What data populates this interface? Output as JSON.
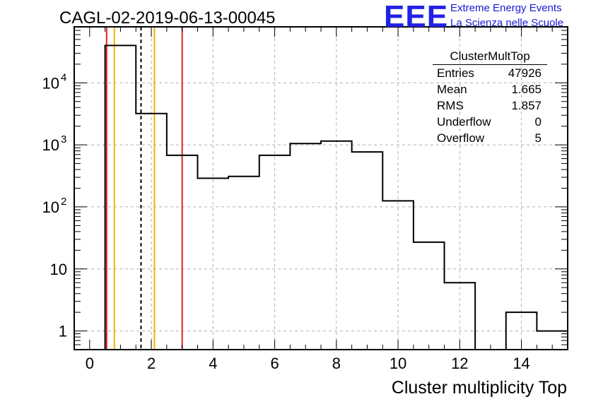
{
  "header": {
    "title": "CAGL-02-2019-06-13-00045",
    "logo_text": "EEE",
    "logo_line1": "Extreme Energy Events",
    "logo_line2": "La Scienza nelle Scuole"
  },
  "stats_box": {
    "name": "ClusterMultTop",
    "rows": [
      {
        "label": "Entries",
        "value": "47926"
      },
      {
        "label": "Mean",
        "value": "1.665"
      },
      {
        "label": "RMS",
        "value": "1.857"
      },
      {
        "label": "Underflow",
        "value": "0"
      },
      {
        "label": "Overflow",
        "value": "5"
      }
    ]
  },
  "chart_data": {
    "type": "histogram",
    "title": "CAGL-02-2019-06-13-00045",
    "xlabel": "Cluster multiplicity Top",
    "ylabel": "",
    "xlim": [
      -0.5,
      15.5
    ],
    "ylim": [
      0.5,
      80000
    ],
    "yscale": "log",
    "grid": true,
    "bin_width": 1,
    "bins": [
      {
        "center": 0,
        "count": 0
      },
      {
        "center": 1,
        "count": 40000
      },
      {
        "center": 2,
        "count": 3200
      },
      {
        "center": 3,
        "count": 680
      },
      {
        "center": 4,
        "count": 290
      },
      {
        "center": 5,
        "count": 310
      },
      {
        "center": 6,
        "count": 680
      },
      {
        "center": 7,
        "count": 1050
      },
      {
        "center": 8,
        "count": 1150
      },
      {
        "center": 9,
        "count": 770
      },
      {
        "center": 10,
        "count": 125
      },
      {
        "center": 11,
        "count": 27
      },
      {
        "center": 12,
        "count": 6
      },
      {
        "center": 13,
        "count": 0
      },
      {
        "center": 14,
        "count": 2
      },
      {
        "center": 15,
        "count": 1
      }
    ],
    "x_ticks": [
      0,
      2,
      4,
      6,
      8,
      10,
      12,
      14
    ],
    "y_ticks": [
      {
        "value": 1,
        "label": "1"
      },
      {
        "value": 10,
        "label": "10"
      },
      {
        "value": 100,
        "label": "10",
        "exp": "2"
      },
      {
        "value": 1000,
        "label": "10",
        "exp": "3"
      },
      {
        "value": 10000,
        "label": "10",
        "exp": "4"
      }
    ],
    "vertical_lines": [
      {
        "x": 0.55,
        "color": "#e02020",
        "style": "solid"
      },
      {
        "x": 0.8,
        "color": "#f0b400",
        "style": "solid"
      },
      {
        "x": 1.665,
        "color": "#000000",
        "style": "dashed"
      },
      {
        "x": 2.1,
        "color": "#f0b400",
        "style": "solid"
      },
      {
        "x": 3.0,
        "color": "#e02020",
        "style": "solid"
      }
    ]
  }
}
